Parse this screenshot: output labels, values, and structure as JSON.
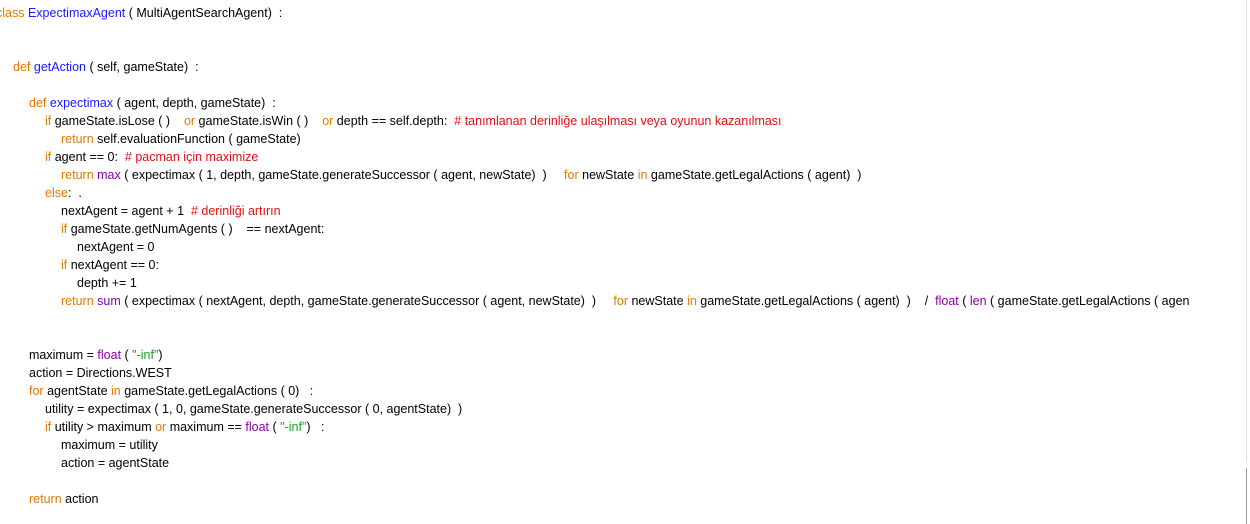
{
  "colors": {
    "keyword": "#e07a00",
    "definition": "#1a1aff",
    "builtin": "#8a00a8",
    "string": "#20a020",
    "comment": "#e01010",
    "text": "#000000",
    "background": "#ffffff"
  },
  "code": {
    "lines": [
      {
        "tokens": [
          {
            "t": "class",
            "k": "kw"
          },
          {
            "t": " ",
            "k": "plain"
          },
          {
            "t": "ExpectimaxAgent",
            "k": "def"
          },
          {
            "t": " ( MultiAgentSearchAgent)  :",
            "k": "plain"
          }
        ]
      },
      {
        "tokens": [
          {
            "t": "def",
            "k": "kw"
          },
          {
            "t": " ",
            "k": "plain"
          },
          {
            "t": "getAction",
            "k": "def"
          },
          {
            "t": " ( self, gameState)  :",
            "k": "plain"
          }
        ]
      },
      {
        "tokens": [
          {
            "t": "def",
            "k": "kw"
          },
          {
            "t": " ",
            "k": "plain"
          },
          {
            "t": "expectimax",
            "k": "def"
          },
          {
            "t": " ( agent, depth, gameState)  :",
            "k": "plain"
          }
        ]
      },
      {
        "tokens": [
          {
            "t": "if",
            "k": "kw"
          },
          {
            "t": " gameState.isLose ( )    ",
            "k": "plain"
          },
          {
            "t": "or",
            "k": "kw"
          },
          {
            "t": " gameState.isWin ( )    ",
            "k": "plain"
          },
          {
            "t": "or",
            "k": "kw"
          },
          {
            "t": " depth == self.depth:  ",
            "k": "plain"
          },
          {
            "t": "# tanımlanan derinliğe ulaşılması veya oyunun kazanılması",
            "k": "cmt"
          }
        ]
      },
      {
        "tokens": [
          {
            "t": "return",
            "k": "kw"
          },
          {
            "t": " self.evaluationFunction ( gameState)",
            "k": "plain"
          }
        ]
      },
      {
        "tokens": [
          {
            "t": "if",
            "k": "kw"
          },
          {
            "t": " agent == 0:  ",
            "k": "plain"
          },
          {
            "t": "# pacman için maximize",
            "k": "cmt"
          }
        ]
      },
      {
        "tokens": [
          {
            "t": "return",
            "k": "kw"
          },
          {
            "t": " ",
            "k": "plain"
          },
          {
            "t": "max",
            "k": "builtin"
          },
          {
            "t": " ( expectimax ( 1, depth, gameState.generateSuccessor ( agent, newState)  )     ",
            "k": "plain"
          },
          {
            "t": "for",
            "k": "kw"
          },
          {
            "t": " newState ",
            "k": "plain"
          },
          {
            "t": "in",
            "k": "kw"
          },
          {
            "t": " gameState.getLegalActions ( agent)  )",
            "k": "plain"
          }
        ]
      },
      {
        "tokens": [
          {
            "t": "else",
            "k": "kw"
          },
          {
            "t": ":  .",
            "k": "plain"
          }
        ]
      },
      {
        "tokens": [
          {
            "t": "nextAgent = agent + 1  ",
            "k": "plain"
          },
          {
            "t": "# derinliği artırın",
            "k": "cmt"
          }
        ]
      },
      {
        "tokens": [
          {
            "t": "if",
            "k": "kw"
          },
          {
            "t": " gameState.getNumAgents ( )    == nextAgent:",
            "k": "plain"
          }
        ]
      },
      {
        "tokens": [
          {
            "t": "nextAgent = 0",
            "k": "plain"
          }
        ]
      },
      {
        "tokens": [
          {
            "t": "if",
            "k": "kw"
          },
          {
            "t": " nextAgent == 0:",
            "k": "plain"
          }
        ]
      },
      {
        "tokens": [
          {
            "t": "depth += 1",
            "k": "plain"
          }
        ]
      },
      {
        "tokens": [
          {
            "t": "return",
            "k": "kw"
          },
          {
            "t": " ",
            "k": "plain"
          },
          {
            "t": "sum",
            "k": "builtin"
          },
          {
            "t": " ( expectimax ( nextAgent, depth, gameState.generateSuccessor ( agent, newState)  )     ",
            "k": "plain"
          },
          {
            "t": "for",
            "k": "kw"
          },
          {
            "t": " newState ",
            "k": "plain"
          },
          {
            "t": "in",
            "k": "kw"
          },
          {
            "t": " gameState.getLegalActions ( agent)  )    /  ",
            "k": "plain"
          },
          {
            "t": "float",
            "k": "builtin"
          },
          {
            "t": " ( ",
            "k": "plain"
          },
          {
            "t": "len",
            "k": "builtin"
          },
          {
            "t": " ( gameState.getLegalActions ( agen",
            "k": "plain"
          }
        ]
      },
      {
        "tokens": [
          {
            "t": "maximum = ",
            "k": "plain"
          },
          {
            "t": "float",
            "k": "builtin"
          },
          {
            "t": " ( ",
            "k": "plain"
          },
          {
            "t": "\"-inf\"",
            "k": "str"
          },
          {
            "t": ")",
            "k": "plain"
          }
        ]
      },
      {
        "tokens": [
          {
            "t": "action = Directions.WEST",
            "k": "plain"
          }
        ]
      },
      {
        "tokens": [
          {
            "t": "for",
            "k": "kw"
          },
          {
            "t": " agentState ",
            "k": "plain"
          },
          {
            "t": "in",
            "k": "kw"
          },
          {
            "t": " gameState.getLegalActions ( 0)   :",
            "k": "plain"
          }
        ]
      },
      {
        "tokens": [
          {
            "t": "utility = expectimax ( 1, 0, gameState.generateSuccessor ( 0, agentState)  )",
            "k": "plain"
          }
        ]
      },
      {
        "tokens": [
          {
            "t": "if",
            "k": "kw"
          },
          {
            "t": " utility > maximum ",
            "k": "plain"
          },
          {
            "t": "or",
            "k": "kw"
          },
          {
            "t": " maximum == ",
            "k": "plain"
          },
          {
            "t": "float",
            "k": "builtin"
          },
          {
            "t": " ( ",
            "k": "plain"
          },
          {
            "t": "\"-inf\"",
            "k": "str"
          },
          {
            "t": ")   :",
            "k": "plain"
          }
        ]
      },
      {
        "tokens": [
          {
            "t": "maximum = utility",
            "k": "plain"
          }
        ]
      },
      {
        "tokens": [
          {
            "t": "action = agentState",
            "k": "plain"
          }
        ]
      },
      {
        "tokens": [
          {
            "t": "return",
            "k": "kw"
          },
          {
            "t": " action",
            "k": "plain"
          }
        ]
      }
    ]
  }
}
